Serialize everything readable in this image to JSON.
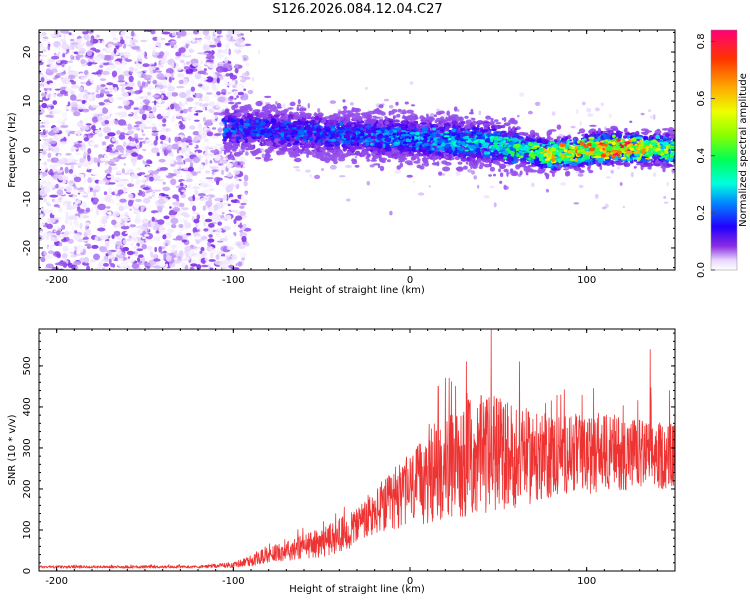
{
  "title": "S126.2026.084.12.04.C27",
  "chart_data": [
    {
      "type": "heatmap",
      "title": "S126.2026.084.12.04.C27",
      "xlabel": "Height of straight line (km)",
      "ylabel": "Frequency (Hz)",
      "xlim": [
        -210,
        150
      ],
      "ylim": [
        -24.5,
        24.5
      ],
      "xticks": [
        -200,
        -100,
        0,
        100
      ],
      "yticks": [
        -20,
        -10,
        0,
        10,
        20
      ],
      "colorbar": {
        "label": "Normalized spectral amplitude",
        "range": [
          0.0,
          0.84
        ],
        "ticks": [
          "0.0",
          "0.2",
          "0.4",
          "0.6",
          "0.8"
        ],
        "tick_values": [
          0.0,
          0.2,
          0.4,
          0.6,
          0.8
        ]
      },
      "signal_track": {
        "x": [
          -105,
          -80,
          -60,
          -40,
          -20,
          0,
          20,
          40,
          60,
          80,
          100,
          120,
          150
        ],
        "center_freq_hz": [
          4.5,
          4.0,
          3.5,
          3.0,
          2.8,
          2.5,
          2.0,
          1.5,
          0.5,
          -1.0,
          0.0,
          0.5,
          0.0
        ],
        "peak_amplitude": [
          0.3,
          0.28,
          0.3,
          0.3,
          0.33,
          0.35,
          0.38,
          0.4,
          0.5,
          0.7,
          0.75,
          0.84,
          0.55
        ]
      },
      "noise_region": {
        "x": [
          -210,
          -100
        ],
        "amplitude_range": [
          0.0,
          0.12
        ]
      }
    },
    {
      "type": "line",
      "xlabel": "Height of straight line (km)",
      "ylabel": "SNR (10 * v/v)",
      "xlim": [
        -210,
        150
      ],
      "ylim": [
        0,
        590
      ],
      "xticks": [
        -200,
        -100,
        0,
        100
      ],
      "yticks": [
        0,
        100,
        200,
        300,
        400,
        500
      ],
      "color": "#ee3333",
      "series": [
        {
          "name": "SNR",
          "x": [
            -210,
            -180,
            -150,
            -120,
            -100,
            -90,
            -80,
            -70,
            -60,
            -50,
            -40,
            -30,
            -20,
            -10,
            0,
            10,
            20,
            30,
            40,
            50,
            60,
            70,
            80,
            90,
            100,
            110,
            120,
            130,
            140,
            150
          ],
          "mean": [
            10,
            10,
            10,
            10,
            15,
            25,
            40,
            50,
            60,
            70,
            85,
            110,
            140,
            170,
            200,
            220,
            250,
            270,
            280,
            290,
            280,
            275,
            280,
            290,
            280,
            290,
            290,
            285,
            280,
            280
          ],
          "amp": [
            6,
            6,
            6,
            6,
            12,
            25,
            35,
            45,
            55,
            65,
            75,
            90,
            110,
            130,
            160,
            200,
            230,
            260,
            270,
            260,
            230,
            200,
            190,
            180,
            170,
            170,
            170,
            160,
            150,
            150
          ]
        }
      ],
      "peaks": [
        {
          "x": 16,
          "y": 450
        },
        {
          "x": 20,
          "y": 470
        },
        {
          "x": 32,
          "y": 510
        },
        {
          "x": 46,
          "y": 590
        },
        {
          "x": 62,
          "y": 510
        },
        {
          "x": 80,
          "y": 415
        },
        {
          "x": 104,
          "y": 445
        },
        {
          "x": 136,
          "y": 540
        },
        {
          "x": 147,
          "y": 440
        }
      ]
    }
  ]
}
